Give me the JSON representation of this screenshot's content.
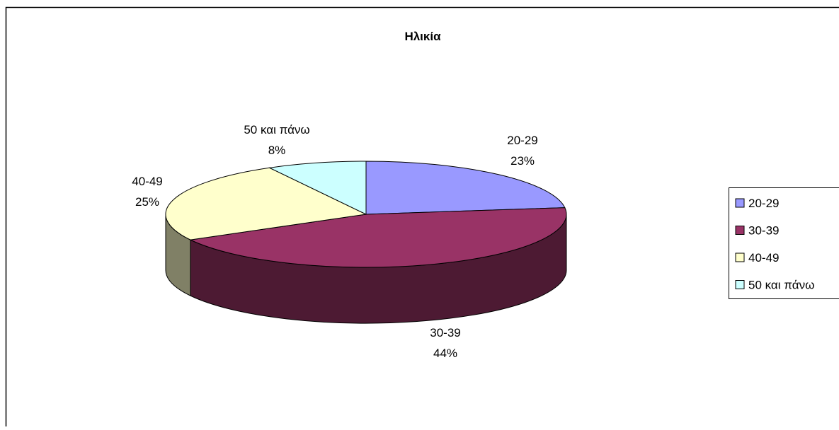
{
  "chart_data": {
    "type": "pie",
    "style": "3d",
    "title": "Ηλικία",
    "categories": [
      "20-29",
      "30-39",
      "40-49",
      "50 και πάνω"
    ],
    "values": [
      23,
      44,
      25,
      8
    ],
    "value_labels": [
      "23%",
      "44%",
      "25%",
      "8%"
    ],
    "colors": [
      "#9999FF",
      "#993366",
      "#FFFFCC",
      "#CCFFFF"
    ],
    "legend_position": "right",
    "legend": [
      {
        "label": "20-29",
        "color": "#9999FF"
      },
      {
        "label": "30-39",
        "color": "#993366"
      },
      {
        "label": "40-49",
        "color": "#FFFFCC"
      },
      {
        "label": "50 και πάνω",
        "color": "#CCFFFF"
      }
    ]
  }
}
